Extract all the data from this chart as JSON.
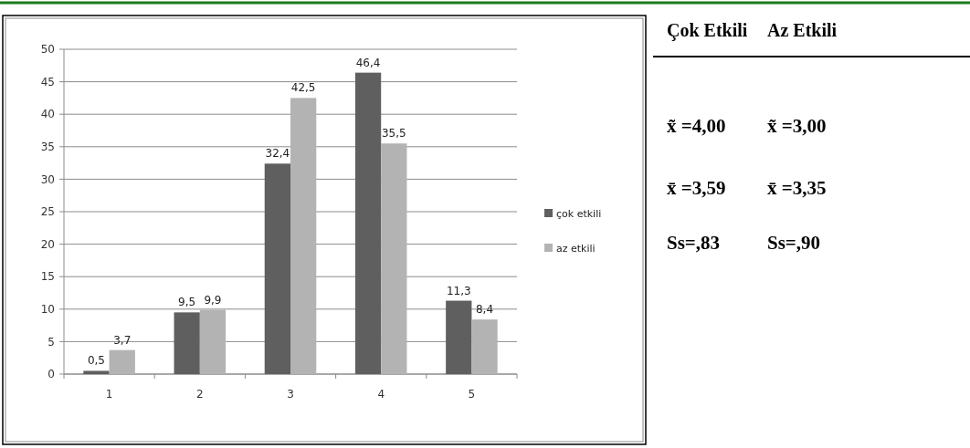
{
  "chart_data": [
    {
      "type": "bar",
      "categories": [
        "1",
        "2",
        "3",
        "4",
        "5"
      ],
      "series": [
        {
          "name": "çok etkili",
          "color": "#5f5f5f",
          "values": [
            0.5,
            9.5,
            32.4,
            46.4,
            11.3
          ],
          "value_labels": [
            "0,5",
            "9,5",
            "32,4",
            "46,4",
            "11,3"
          ]
        },
        {
          "name": "az etkili",
          "color": "#b3b3b3",
          "values": [
            3.7,
            9.9,
            42.5,
            35.5,
            8.4
          ],
          "value_labels": [
            "3,7",
            "9,9",
            "42,5",
            "35,5",
            "8,4"
          ]
        }
      ],
      "ylim": [
        0,
        50
      ],
      "yticks": [
        0,
        5,
        10,
        15,
        20,
        25,
        30,
        35,
        40,
        45,
        50
      ],
      "grid": "y",
      "legend": "right"
    },
    {
      "type": "other",
      "annotations": [
        "Çok Etkili",
        "Az Etkili",
        "x̃ =4,00",
        "x̃ =3,00",
        "x̄ =3,59",
        "x̄ =3,35",
        "Ss=,83",
        "Ss=,90"
      ]
    }
  ]
}
